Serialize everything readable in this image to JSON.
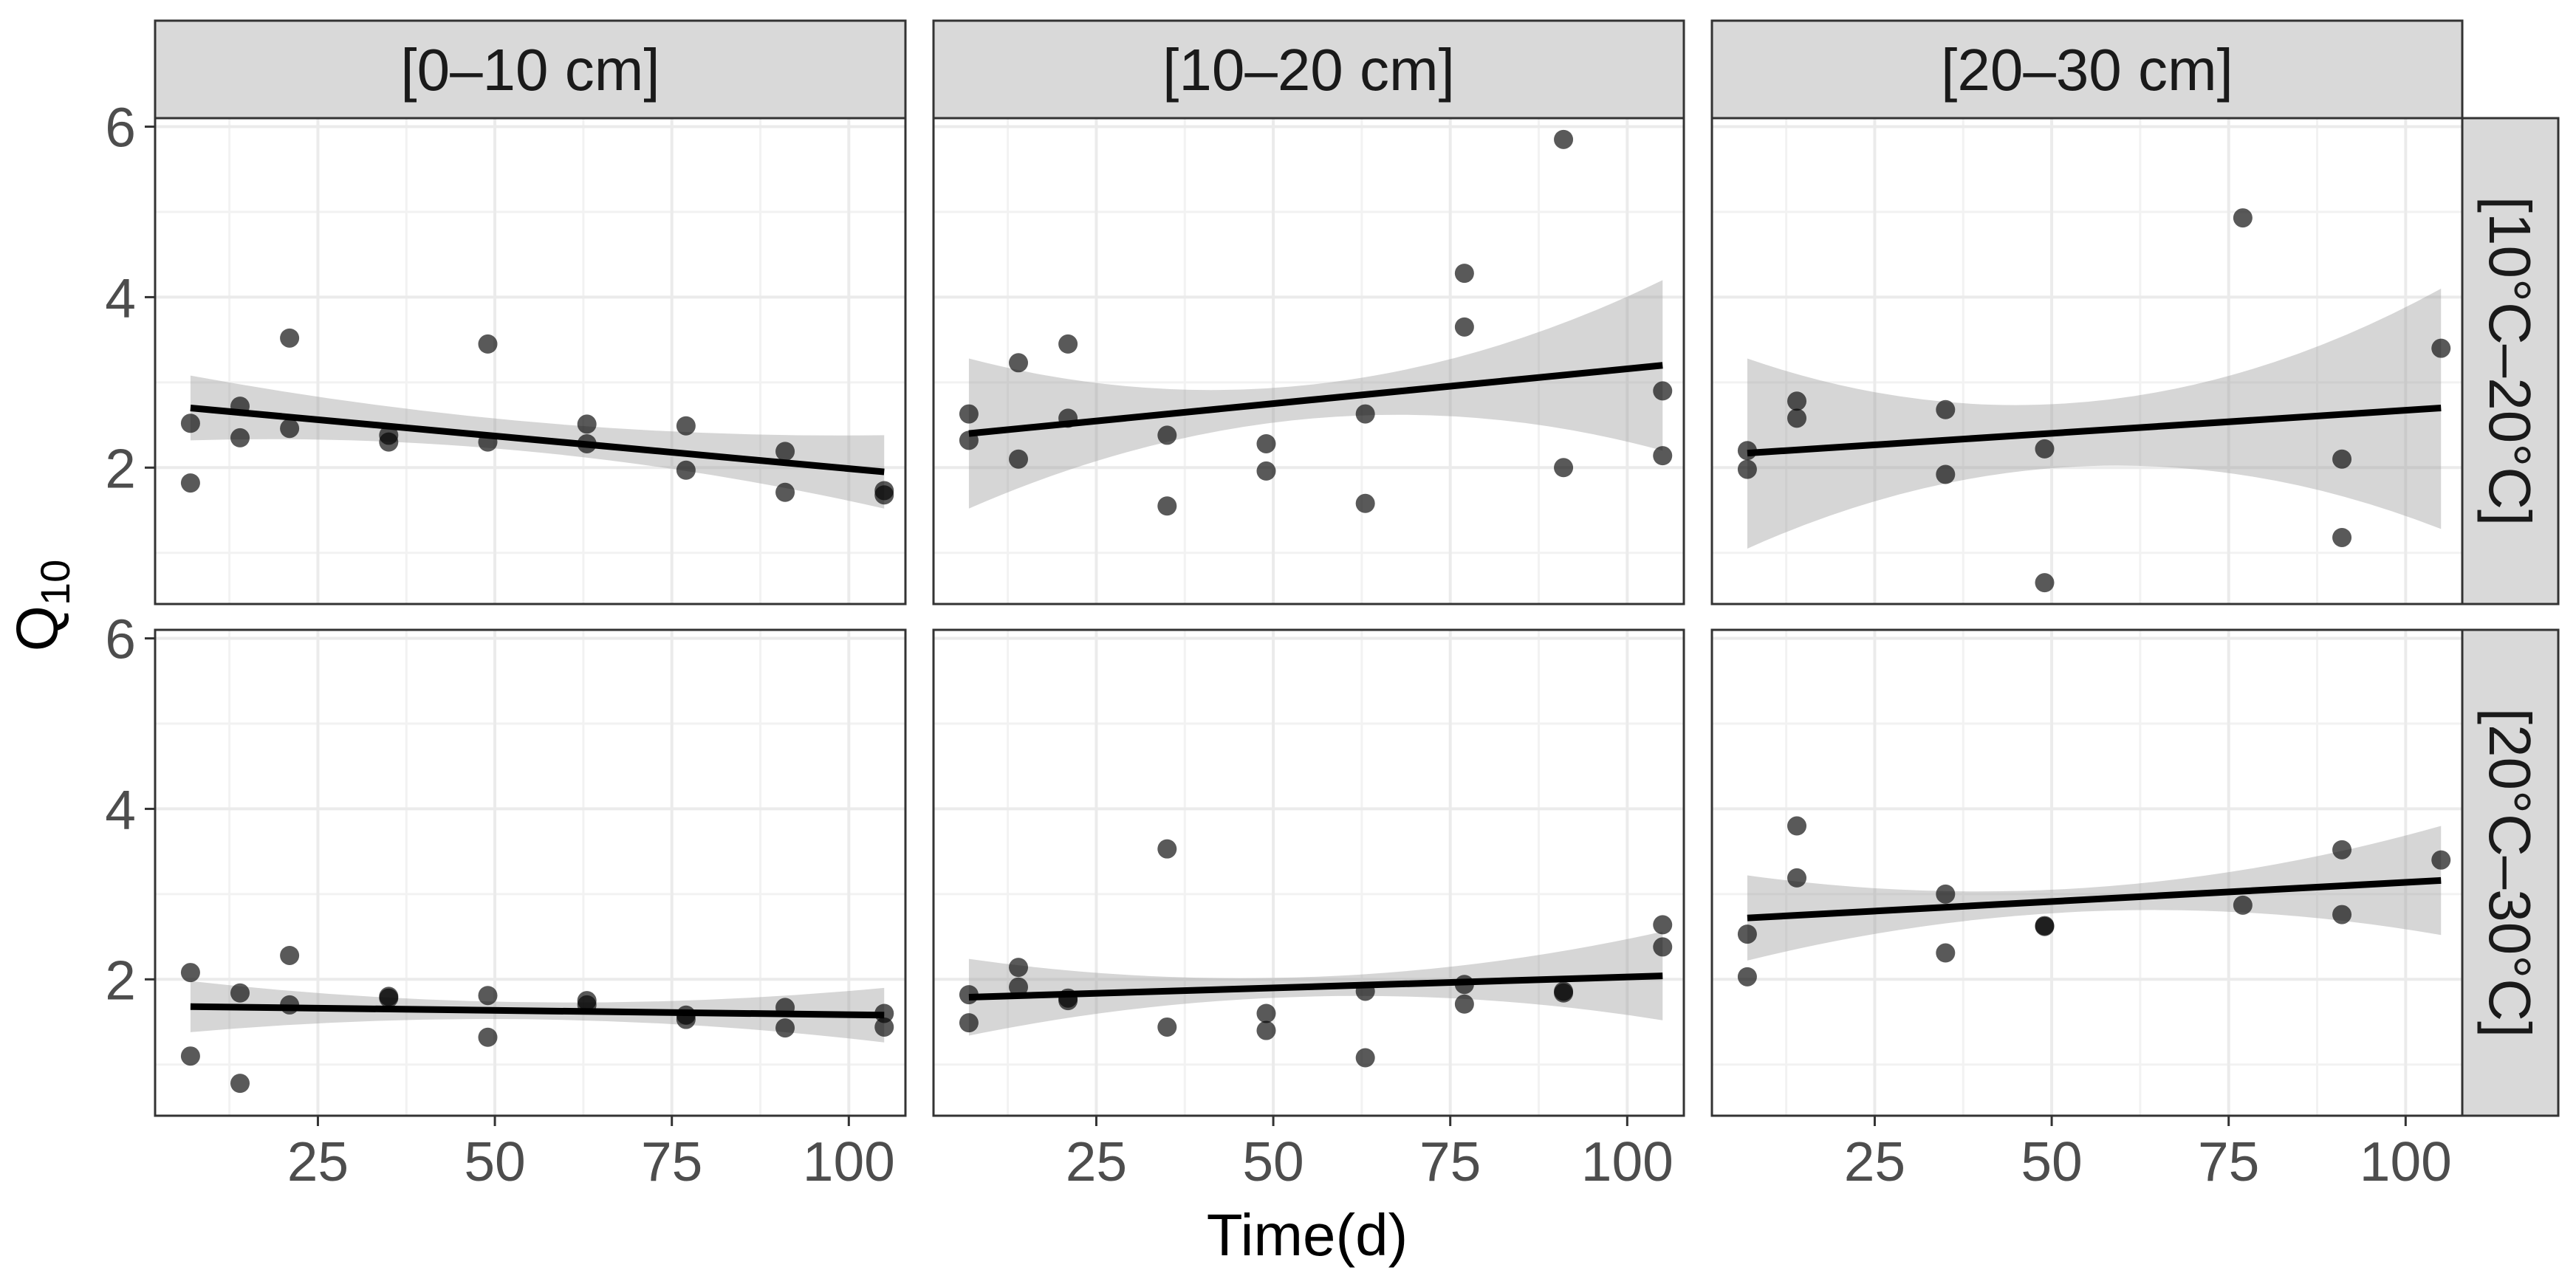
{
  "chart_data": {
    "type": "scatter",
    "xlabel": "Time(d)",
    "ylabel": {
      "base": "Q",
      "subscript": "10"
    },
    "xlim": [
      2,
      108
    ],
    "ylim": [
      0.4,
      6.1
    ],
    "x_ticks": [
      25,
      50,
      75,
      100
    ],
    "y_ticks": [
      2,
      4,
      6
    ],
    "x_tick_labels": [
      "25",
      "50",
      "75",
      "100"
    ],
    "y_tick_labels": [
      "2",
      "4",
      "6"
    ],
    "grid": true,
    "column_labels": [
      "[0–10 cm]",
      "[10–20 cm]",
      "[20–30 cm]"
    ],
    "row_labels": [
      "[10°C–20°C]",
      "[20°C–30°C]"
    ],
    "panels": [
      {
        "row": 0,
        "col": 0,
        "points": [
          [
            7,
            2.52
          ],
          [
            7,
            1.82
          ],
          [
            14,
            2.72
          ],
          [
            14,
            2.35
          ],
          [
            21,
            3.52
          ],
          [
            21,
            2.46
          ],
          [
            35,
            2.38
          ],
          [
            35,
            2.3
          ],
          [
            49,
            3.45
          ],
          [
            49,
            2.3
          ],
          [
            63,
            2.51
          ],
          [
            63,
            2.28
          ],
          [
            77,
            2.49
          ],
          [
            77,
            1.97
          ],
          [
            91,
            2.19
          ],
          [
            91,
            1.71
          ],
          [
            105,
            1.73
          ],
          [
            105,
            1.68
          ]
        ],
        "fit": {
          "x": [
            7,
            105
          ],
          "y": [
            2.7,
            1.95
          ]
        },
        "band": {
          "x": [
            7,
            56,
            105
          ],
          "upper": [
            3.08,
            2.53,
            2.38
          ],
          "lower": [
            2.32,
            2.18,
            1.52
          ]
        }
      },
      {
        "row": 0,
        "col": 1,
        "points": [
          [
            7,
            2.63
          ],
          [
            7,
            2.32
          ],
          [
            14,
            3.23
          ],
          [
            14,
            2.1
          ],
          [
            21,
            3.45
          ],
          [
            21,
            2.58
          ],
          [
            35,
            2.38
          ],
          [
            35,
            1.55
          ],
          [
            49,
            2.28
          ],
          [
            49,
            1.96
          ],
          [
            63,
            2.63
          ],
          [
            63,
            1.58
          ],
          [
            77,
            4.28
          ],
          [
            77,
            3.65
          ],
          [
            91,
            5.85
          ],
          [
            91,
            2.0
          ],
          [
            105,
            2.9
          ],
          [
            105,
            2.14
          ]
        ],
        "fit": {
          "x": [
            7,
            105
          ],
          "y": [
            2.4,
            3.2
          ]
        },
        "band": {
          "x": [
            7,
            56,
            105
          ],
          "upper": [
            3.28,
            2.98,
            4.2
          ],
          "lower": [
            1.52,
            2.58,
            2.2
          ]
        }
      },
      {
        "row": 0,
        "col": 2,
        "points": [
          [
            7,
            2.2
          ],
          [
            7,
            1.98
          ],
          [
            14,
            2.78
          ],
          [
            14,
            2.58
          ],
          [
            35,
            2.68
          ],
          [
            35,
            1.92
          ],
          [
            49,
            2.22
          ],
          [
            49,
            0.65
          ],
          [
            77,
            4.93
          ],
          [
            91,
            2.1
          ],
          [
            91,
            1.18
          ],
          [
            105,
            3.4
          ]
        ],
        "fit": {
          "x": [
            7,
            105
          ],
          "y": [
            2.17,
            2.7
          ]
        },
        "band": {
          "x": [
            7,
            56,
            105
          ],
          "upper": [
            3.28,
            2.78,
            4.1
          ],
          "lower": [
            1.05,
            2.02,
            1.28
          ]
        }
      },
      {
        "row": 1,
        "col": 0,
        "points": [
          [
            7,
            2.08
          ],
          [
            7,
            1.1
          ],
          [
            14,
            1.84
          ],
          [
            14,
            0.78
          ],
          [
            21,
            2.28
          ],
          [
            21,
            1.7
          ],
          [
            35,
            1.8
          ],
          [
            35,
            1.78
          ],
          [
            49,
            1.81
          ],
          [
            49,
            1.32
          ],
          [
            63,
            1.75
          ],
          [
            63,
            1.7
          ],
          [
            77,
            1.58
          ],
          [
            77,
            1.53
          ],
          [
            91,
            1.67
          ],
          [
            91,
            1.43
          ],
          [
            105,
            1.6
          ],
          [
            105,
            1.44
          ]
        ],
        "fit": {
          "x": [
            7,
            105
          ],
          "y": [
            1.68,
            1.58
          ]
        },
        "band": {
          "x": [
            7,
            56,
            105
          ],
          "upper": [
            1.98,
            1.73,
            1.9
          ],
          "lower": [
            1.38,
            1.53,
            1.26
          ]
        }
      },
      {
        "row": 1,
        "col": 1,
        "points": [
          [
            7,
            1.82
          ],
          [
            7,
            1.49
          ],
          [
            14,
            2.14
          ],
          [
            14,
            1.91
          ],
          [
            21,
            1.78
          ],
          [
            21,
            1.75
          ],
          [
            35,
            3.53
          ],
          [
            35,
            1.44
          ],
          [
            49,
            1.6
          ],
          [
            49,
            1.4
          ],
          [
            63,
            1.86
          ],
          [
            63,
            1.08
          ],
          [
            77,
            1.94
          ],
          [
            77,
            1.71
          ],
          [
            91,
            1.86
          ],
          [
            91,
            1.84
          ],
          [
            105,
            2.64
          ],
          [
            105,
            2.38
          ]
        ],
        "fit": {
          "x": [
            7,
            105
          ],
          "y": [
            1.79,
            2.04
          ]
        },
        "band": {
          "x": [
            7,
            56,
            105
          ],
          "upper": [
            2.24,
            2.03,
            2.56
          ],
          "lower": [
            1.34,
            1.8,
            1.52
          ]
        }
      },
      {
        "row": 1,
        "col": 2,
        "points": [
          [
            7,
            2.53
          ],
          [
            7,
            2.03
          ],
          [
            14,
            3.8
          ],
          [
            14,
            3.19
          ],
          [
            35,
            3.0
          ],
          [
            35,
            2.31
          ],
          [
            49,
            2.63
          ],
          [
            49,
            2.62
          ],
          [
            77,
            2.87
          ],
          [
            91,
            3.52
          ],
          [
            91,
            2.76
          ],
          [
            105,
            3.4
          ]
        ],
        "fit": {
          "x": [
            7,
            105
          ],
          "y": [
            2.72,
            3.16
          ]
        },
        "band": {
          "x": [
            7,
            56,
            105
          ],
          "upper": [
            3.22,
            3.08,
            3.8
          ],
          "lower": [
            2.22,
            2.8,
            2.52
          ]
        }
      }
    ]
  }
}
